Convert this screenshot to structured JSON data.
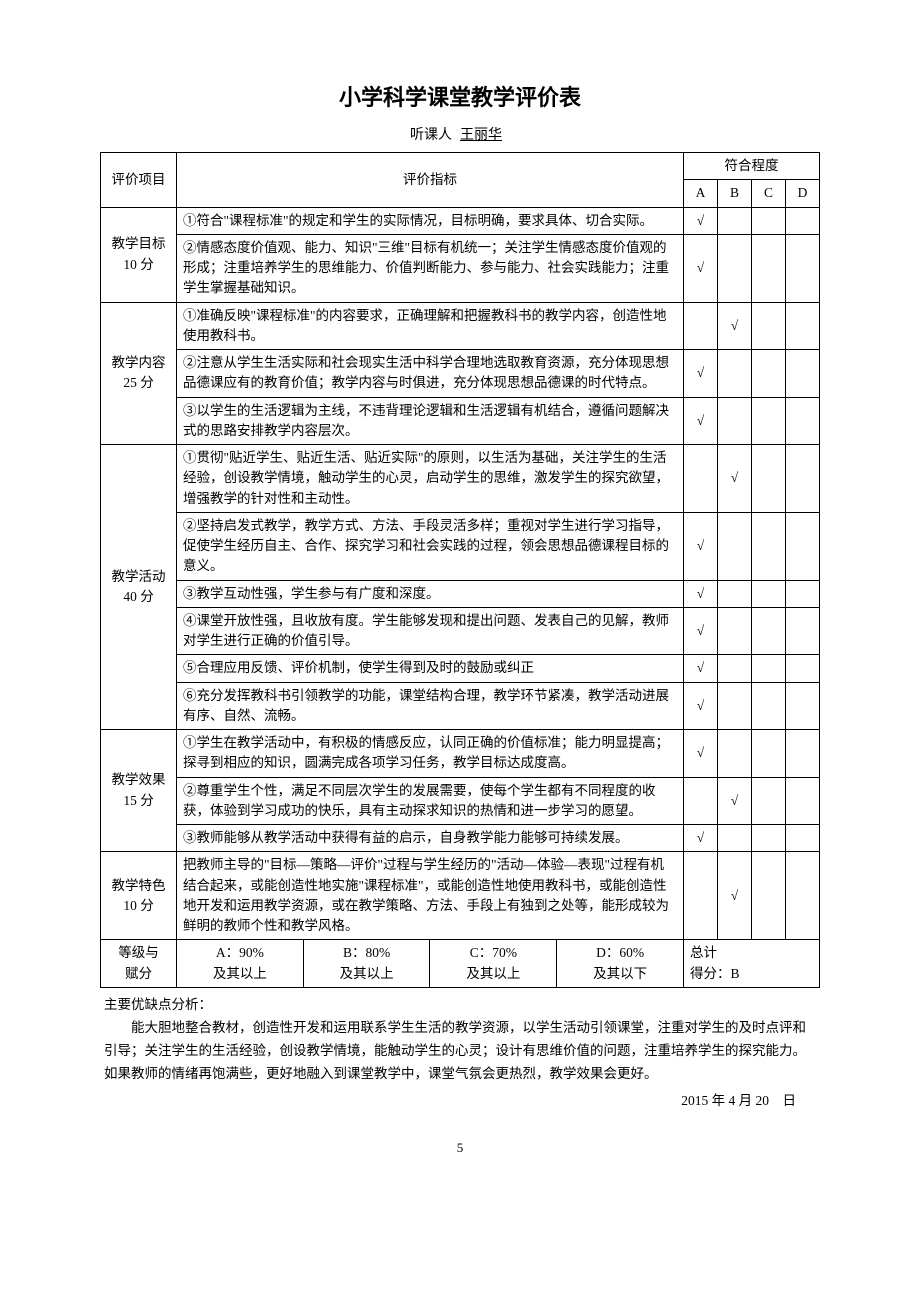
{
  "title": "小学科学课堂教学评价表",
  "subtitle_label": "听课人",
  "subtitle_value": "王丽华",
  "headers": {
    "category": "评价项目",
    "indicator": "评价指标",
    "degree": "符合程度",
    "A": "A",
    "B": "B",
    "C": "C",
    "D": "D"
  },
  "check": "√",
  "sections": [
    {
      "name": "教学目标\n10 分",
      "rows": [
        {
          "text": "①符合\"课程标准\"的规定和学生的实际情况，目标明确，要求具体、切合实际。",
          "mark": "A"
        },
        {
          "text": "②情感态度价值观、能力、知识\"三维\"目标有机统一；关注学生情感态度价值观的形成；注重培养学生的思维能力、价值判断能力、参与能力、社会实践能力；注重学生掌握基础知识。",
          "mark": "A"
        }
      ]
    },
    {
      "name": "教学内容\n25 分",
      "rows": [
        {
          "text": "①准确反映\"课程标准\"的内容要求，正确理解和把握教科书的教学内容，创造性地使用教科书。",
          "mark": "B"
        },
        {
          "text": "②注意从学生生活实际和社会现实生活中科学合理地选取教育资源，充分体现思想品德课应有的教育价值；教学内容与时俱进，充分体现思想品德课的时代特点。",
          "mark": "A"
        },
        {
          "text": "③以学生的生活逻辑为主线，不违背理论逻辑和生活逻辑有机结合，遵循问题解决式的思路安排教学内容层次。",
          "mark": "A"
        }
      ]
    },
    {
      "name": "教学活动\n40 分",
      "rows": [
        {
          "text": "①贯彻\"贴近学生、贴近生活、贴近实际\"的原则，以生活为基础，关注学生的生活经验，创设教学情境，触动学生的心灵，启动学生的思维，激发学生的探究欲望，增强教学的针对性和主动性。",
          "mark": "B"
        },
        {
          "text": "②坚持启发式教学，教学方式、方法、手段灵活多样；重视对学生进行学习指导，促使学生经历自主、合作、探究学习和社会实践的过程，领会思想品德课程目标的意义。",
          "mark": "A"
        },
        {
          "text": "③教学互动性强，学生参与有广度和深度。",
          "mark": "A"
        },
        {
          "text": "④课堂开放性强，且收放有度。学生能够发现和提出问题、发表自己的见解，教师对学生进行正确的价值引导。",
          "mark": "A"
        },
        {
          "text": "⑤合理应用反馈、评价机制，使学生得到及时的鼓励或纠正",
          "mark": "A"
        },
        {
          "text": "⑥充分发挥教科书引领教学的功能，课堂结构合理，教学环节紧凑，教学活动进展有序、自然、流畅。",
          "mark": "A"
        }
      ]
    },
    {
      "name": "教学效果\n15 分",
      "rows": [
        {
          "text": "①学生在教学活动中，有积极的情感反应，认同正确的价值标准；能力明显提高；探寻到相应的知识，圆满完成各项学习任务，教学目标达成度高。",
          "mark": "A"
        },
        {
          "text": "②尊重学生个性，满足不同层次学生的发展需要，使每个学生都有不同程度的收获，体验到学习成功的快乐，具有主动探求知识的热情和进一步学习的愿望。",
          "mark": "B"
        },
        {
          "text": "③教师能够从教学活动中获得有益的启示，自身教学能力能够可持续发展。",
          "mark": "A"
        }
      ]
    },
    {
      "name": "教学特色\n10 分",
      "rows": [
        {
          "text": "把教师主导的\"目标—策略—评价\"过程与学生经历的\"活动—体验—表现\"过程有机结合起来，或能创造性地实施\"课程标准\"，或能创造性地使用教科书，或能创造性地开发和运用教学资源，或在教学策略、方法、手段上有独到之处等，能形成较为鲜明的教师个性和教学风格。",
          "mark": "B"
        }
      ]
    }
  ],
  "grades_row": {
    "label": "等级与\n赋分",
    "A": "A：90%\n及其以上",
    "B": "B：80%\n及其以上",
    "C": "C：70%\n及其以上",
    "D": "D：60%\n及其以下",
    "total_label": "总计\n得分：B"
  },
  "analysis": {
    "label": "主要优缺点分析：",
    "body": "能大胆地整合教材，创造性开发和运用联系学生生活的教学资源，以学生活动引领课堂，注重对学生的及时点评和引导；关注学生的生活经验，创设教学情境，能触动学生的心灵；设计有思维价值的问题，注重培养学生的探究能力。如果教师的情绪再饱满些，更好地融入到课堂教学中，课堂气氛会更热烈，教学效果会更好。"
  },
  "date": "2015 年 4 月 20　日",
  "page_number": "5"
}
